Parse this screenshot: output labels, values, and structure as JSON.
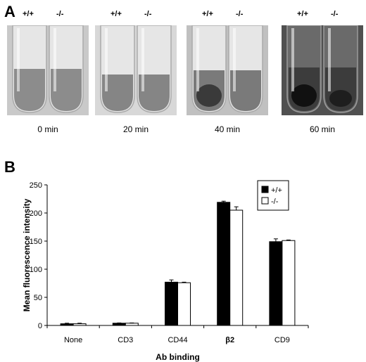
{
  "panel_a": {
    "letter": "A",
    "photos": [
      {
        "genotypes": [
          "+/+",
          "-/-"
        ],
        "time": "0 min"
      },
      {
        "genotypes": [
          "+/+",
          "-/-"
        ],
        "time": "20 min"
      },
      {
        "genotypes": [
          "+/+",
          "-/-"
        ],
        "time": "40 min"
      },
      {
        "genotypes": [
          "+/+",
          "-/-"
        ],
        "time": "60 min"
      }
    ]
  },
  "panel_b": {
    "letter": "B"
  },
  "chart_data": {
    "type": "bar",
    "title": "",
    "xlabel": "Ab binding",
    "ylabel": "Mean fluorescence intensity",
    "ylim": [
      0,
      250
    ],
    "yticks": [
      "0",
      "50",
      "100",
      "150",
      "200",
      "250"
    ],
    "categories": [
      "None",
      "CD3",
      "CD44",
      "β2",
      "CD9"
    ],
    "series": [
      {
        "name": "+/+",
        "color": "#000000",
        "values": [
          3,
          4,
          77,
          219,
          149
        ],
        "errors": [
          1,
          0.5,
          4,
          2,
          5
        ]
      },
      {
        "name": "-/-",
        "color": "#ffffff",
        "values": [
          3,
          4,
          76,
          205,
          151
        ],
        "errors": [
          1,
          0.5,
          1,
          6,
          1
        ]
      }
    ],
    "legend": "top-right",
    "grid": false
  }
}
